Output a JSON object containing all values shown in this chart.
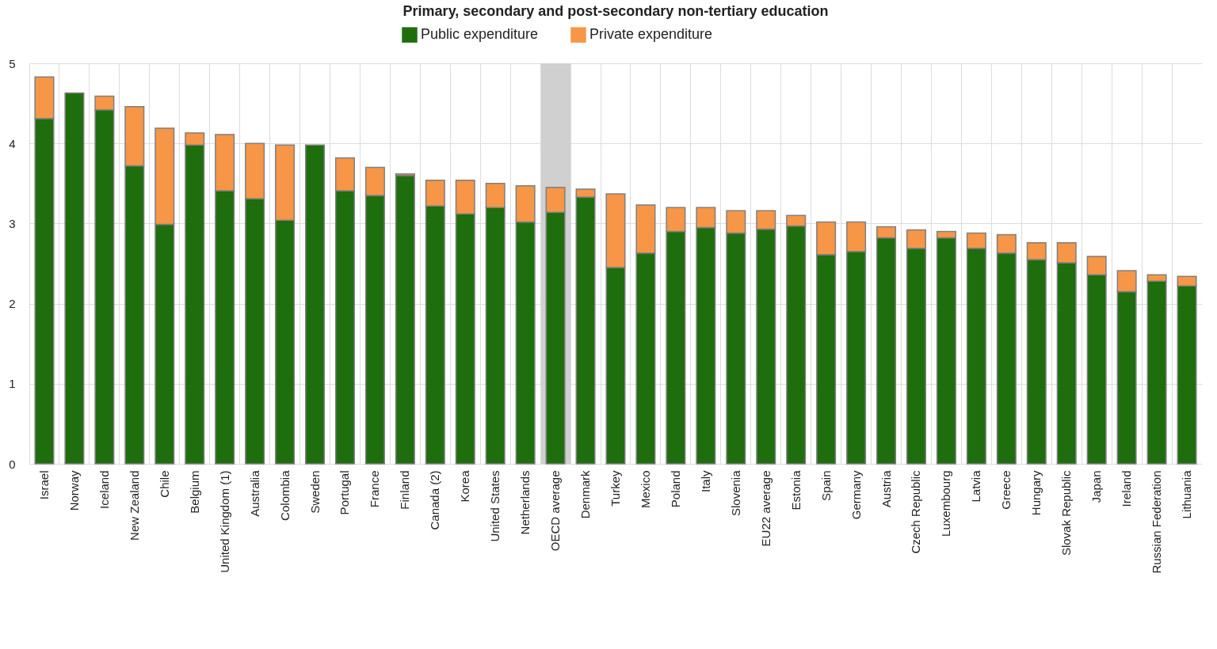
{
  "chart_data": {
    "type": "bar",
    "title": "Primary, secondary and post-secondary non-tertiary education",
    "stacked": true,
    "grid": true,
    "legend": "top",
    "categories": [
      "Israel",
      "Norway",
      "Iceland",
      "New Zealand",
      "Chile",
      "Belgium",
      "United Kingdom (1)",
      "Australia",
      "Colombia",
      "Sweden",
      "Portugal",
      "France",
      "Finland",
      "Canada (2)",
      "Korea",
      "United States",
      "Netherlands",
      "OECD average",
      "Denmark",
      "Turkey",
      "Mexico",
      "Poland",
      "Italy",
      "Slovenia",
      "EU22 average",
      "Estonia",
      "Spain",
      "Germany",
      "Austria",
      "Czech Republic",
      "Luxembourg",
      "Latvia",
      "Greece",
      "Hungary",
      "Slovak Republic",
      "Japan",
      "Ireland",
      "Russian Federation",
      "Lithuania"
    ],
    "series": [
      {
        "name": "Public expenditure",
        "color": "#1e6e0e",
        "values": [
          4.31,
          4.63,
          4.42,
          3.72,
          2.99,
          3.98,
          3.41,
          3.31,
          3.04,
          3.98,
          3.41,
          3.35,
          3.6,
          3.22,
          3.12,
          3.2,
          3.02,
          3.14,
          3.33,
          2.45,
          2.63,
          2.9,
          2.95,
          2.88,
          2.93,
          2.97,
          2.61,
          2.65,
          2.82,
          2.69,
          2.82,
          2.69,
          2.63,
          2.55,
          2.51,
          2.36,
          2.15,
          2.28,
          2.22
        ]
      },
      {
        "name": "Private expenditure",
        "color": "#f79646",
        "values": [
          0.52,
          null,
          0.17,
          0.74,
          1.2,
          0.15,
          0.7,
          0.69,
          0.94,
          null,
          0.41,
          0.35,
          0.02,
          0.32,
          0.42,
          0.3,
          0.45,
          0.31,
          0.1,
          0.92,
          0.6,
          0.3,
          0.25,
          0.28,
          0.23,
          0.13,
          0.41,
          0.37,
          0.14,
          0.23,
          0.08,
          0.19,
          0.23,
          0.21,
          0.25,
          0.23,
          0.26,
          0.08,
          0.12
        ]
      }
    ],
    "bands": [
      {
        "axis": "x",
        "from": "OECD average",
        "to": "OECD average",
        "color": "#d0d0d0"
      }
    ],
    "ylim": [
      0,
      5
    ],
    "yticks": [
      0,
      1,
      2,
      3,
      4,
      5
    ]
  }
}
